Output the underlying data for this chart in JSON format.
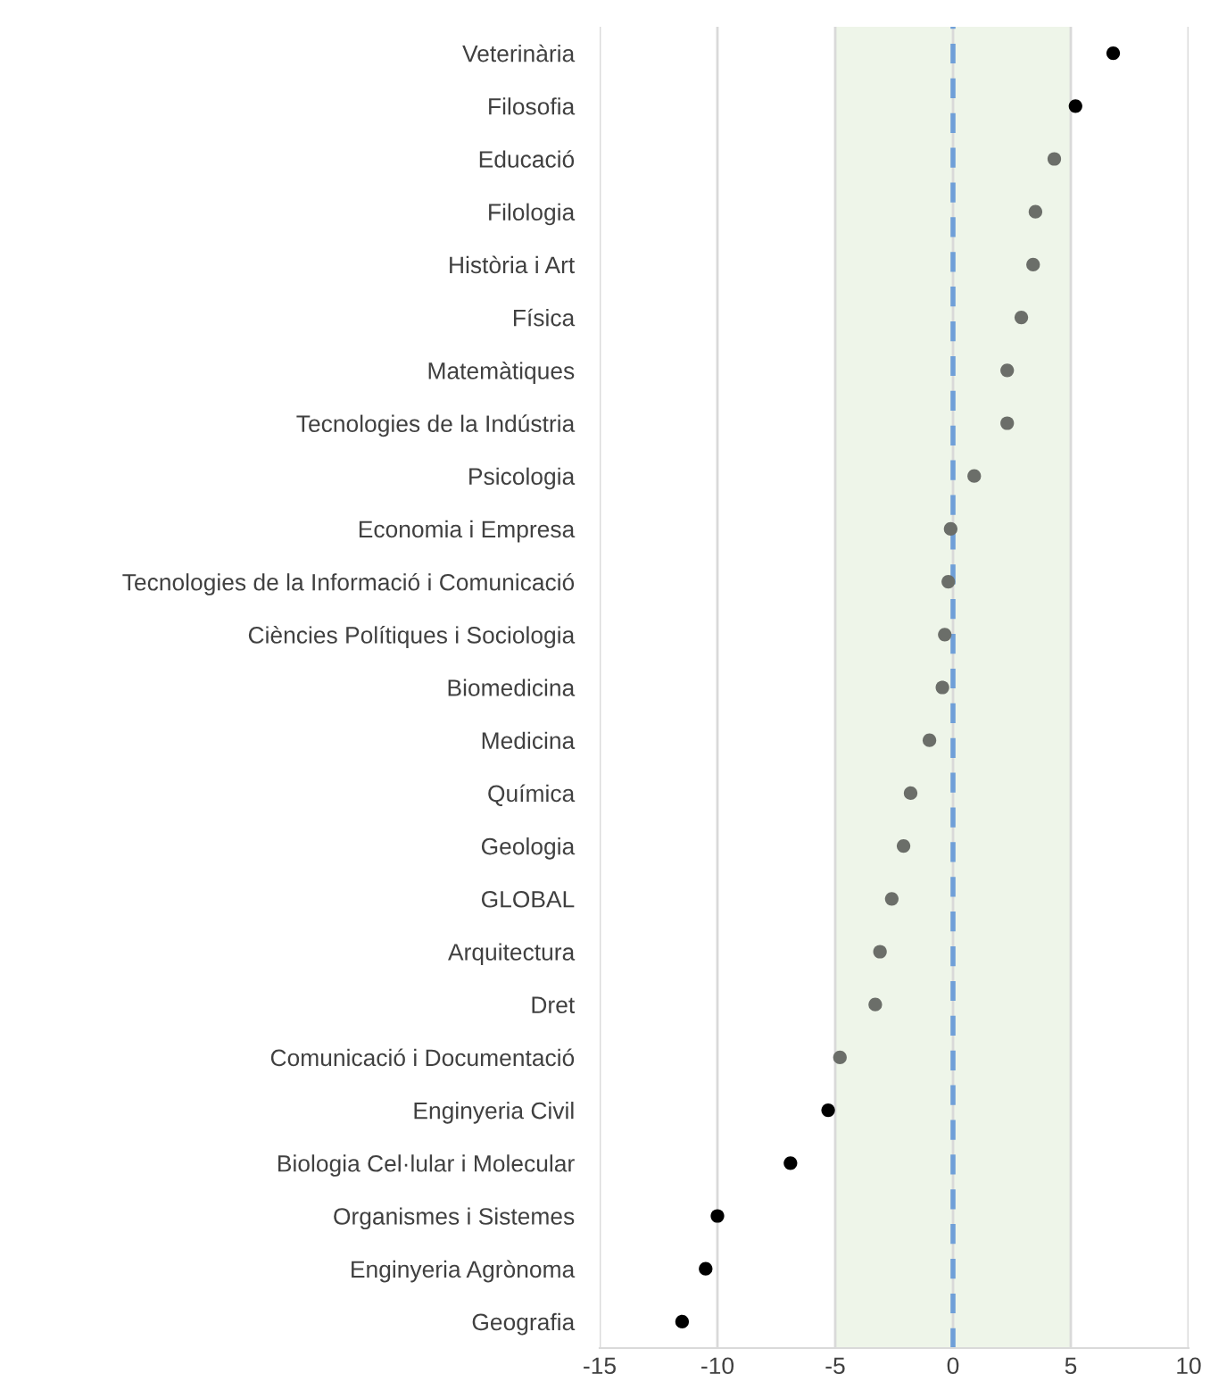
{
  "chart_data": {
    "type": "scatter",
    "categories": [
      "Veterinària",
      "Filosofia",
      "Educació",
      "Filologia",
      "Història i Art",
      "Física",
      "Matemàtiques",
      "Tecnologies de la Indústria",
      "Psicologia",
      "Economia i Empresa",
      "Tecnologies de la Informació i Comunicació",
      "Ciències Polítiques i Sociologia",
      "Biomedicina",
      "Medicina",
      "Química",
      "Geologia",
      "GLOBAL",
      "Arquitectura",
      "Dret",
      "Comunicació i Documentació",
      "Enginyeria Civil",
      "Biologia Cel·lular i Molecular",
      "Organismes i Sistemes",
      "Enginyeria Agrònoma",
      "Geografia"
    ],
    "orientation": "horizontal",
    "values": [
      6.8,
      5.2,
      4.3,
      3.5,
      3.4,
      2.9,
      2.3,
      2.3,
      0.9,
      -0.1,
      -0.2,
      -0.35,
      -0.45,
      -1.0,
      -1.8,
      -2.1,
      -2.6,
      -3.1,
      -3.3,
      -4.8,
      -5.3,
      -6.9,
      -10.0,
      -10.5,
      -11.5
    ],
    "colors": [
      "#000000",
      "#000000",
      "#6b6e69",
      "#6b6e69",
      "#6b6e69",
      "#6b6e69",
      "#6b6e69",
      "#6b6e69",
      "#6b6e69",
      "#6b6e69",
      "#6b6e69",
      "#6b6e69",
      "#6b6e69",
      "#6b6e69",
      "#6b6e69",
      "#6b6e69",
      "#6b6e69",
      "#6b6e69",
      "#6b6e69",
      "#6b6e69",
      "#000000",
      "#000000",
      "#000000",
      "#000000",
      "#000000"
    ],
    "marker": "circle",
    "xlim": [
      -15,
      10
    ],
    "xticks": [
      -15,
      -10,
      -5,
      0,
      5,
      10
    ],
    "grid": "x",
    "bands": [
      {
        "axis": "x",
        "from": -5,
        "to": 5,
        "color": "#eef5e9"
      }
    ],
    "ref_lines": [
      {
        "axis": "x",
        "value": 0,
        "color": "#6f9fd8",
        "line_style": "dashed"
      }
    ]
  }
}
